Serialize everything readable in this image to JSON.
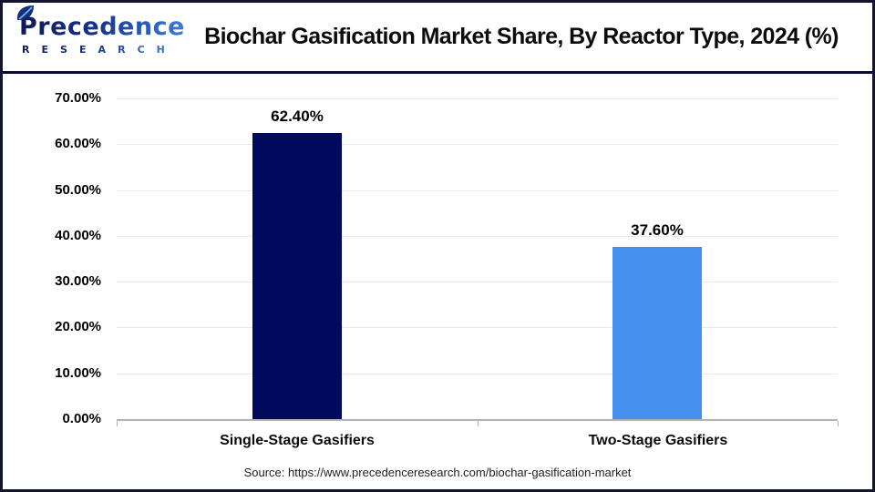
{
  "header": {
    "logo": {
      "brand_top": "Precedence",
      "brand_bottom": "R E S E A R C H"
    },
    "title": "Biochar Gasification Market Share, By Reactor Type, 2024 (%)"
  },
  "chart_data": {
    "type": "bar",
    "title": "Biochar Gasification Market Share, By Reactor Type, 2024 (%)",
    "categories": [
      "Single-Stage Gasifiers",
      "Two-Stage Gasifiers"
    ],
    "values": [
      62.4,
      37.6
    ],
    "value_labels": [
      "62.40%",
      "37.60%"
    ],
    "bar_colors": [
      "#000a5c",
      "#4590ee"
    ],
    "xlabel": "",
    "ylabel": "",
    "ylim": [
      0,
      70
    ],
    "ytick_step": 10,
    "ytick_labels": [
      "0.00%",
      "10.00%",
      "20.00%",
      "30.00%",
      "40.00%",
      "50.00%",
      "60.00%",
      "70.00%"
    ],
    "grid": true,
    "legend": false
  },
  "footer": {
    "source": "Source: https://www.precedenceresearch.com/biochar-gasification-market"
  },
  "colors": {
    "bar_primary": "#000a5c",
    "bar_secondary": "#4590ee",
    "header_separator": "#060b3d",
    "gridline": "#e9e9e9",
    "axis": "#b3b3b3",
    "logo_dark": "#0e1a57",
    "logo_light": "#3b7bdb"
  }
}
